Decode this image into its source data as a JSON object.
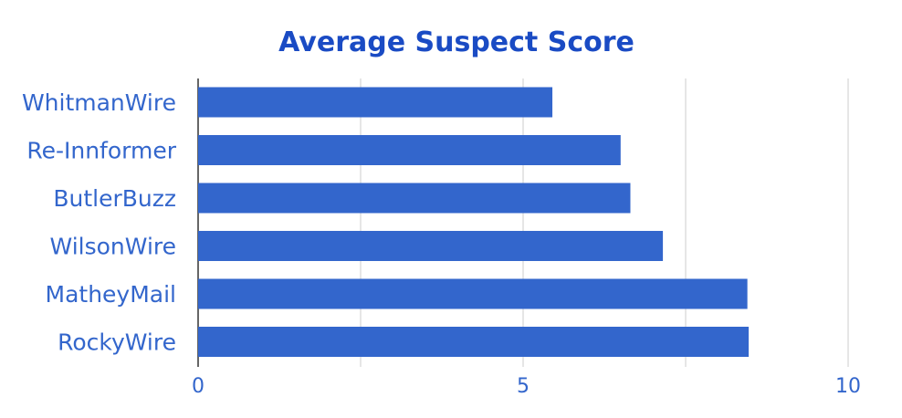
{
  "colors": {
    "bar": "#3366cc",
    "title": "#1a4bc4",
    "label": "#3366cc",
    "grid": "#cccccc",
    "axis": "#333333"
  },
  "chart_data": {
    "type": "bar",
    "orientation": "horizontal",
    "title": "Average Suspect Score",
    "xlabel": "",
    "ylabel": "",
    "categories": [
      "WhitmanWire",
      "Re-Innformer",
      "ButlerBuzz",
      "WilsonWire",
      "MatheyMail",
      "RockyWire"
    ],
    "values": [
      5.45,
      6.5,
      6.65,
      7.15,
      8.45,
      8.47
    ],
    "xlim": [
      0,
      10
    ],
    "ticks": [
      0,
      2.5,
      5,
      7.5,
      10
    ],
    "tick_labels": [
      "0",
      "",
      "5",
      "",
      "10"
    ],
    "grid": true,
    "legend": "none"
  }
}
